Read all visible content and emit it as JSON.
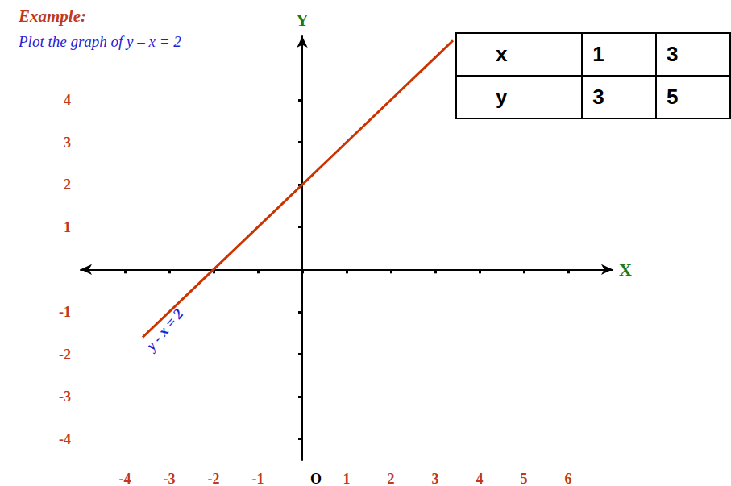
{
  "chart_data": {
    "type": "line",
    "title": "Example:",
    "subtitle": "Plot the graph of y – x = 2",
    "x_label": "X",
    "y_label": "Y",
    "annotation": "y - x = 2",
    "x": [
      -3.6,
      1,
      3,
      3.4
    ],
    "values": [
      -1.6,
      3,
      5,
      5.4
    ],
    "color": "#cc3300",
    "xlim": [
      -5,
      7
    ],
    "ylim": [
      -4.5,
      5.5
    ],
    "xticks": [
      -4,
      -3,
      -2,
      -1,
      {
        "value": 0,
        "label": "O"
      },
      1,
      2,
      3,
      4,
      5,
      6
    ],
    "yticks": [
      -4,
      -3,
      -2,
      -1,
      1,
      2,
      3,
      4
    ],
    "grid": false,
    "table": {
      "rows": [
        [
          "x",
          1,
          3
        ],
        [
          "y",
          3,
          5
        ]
      ]
    }
  }
}
